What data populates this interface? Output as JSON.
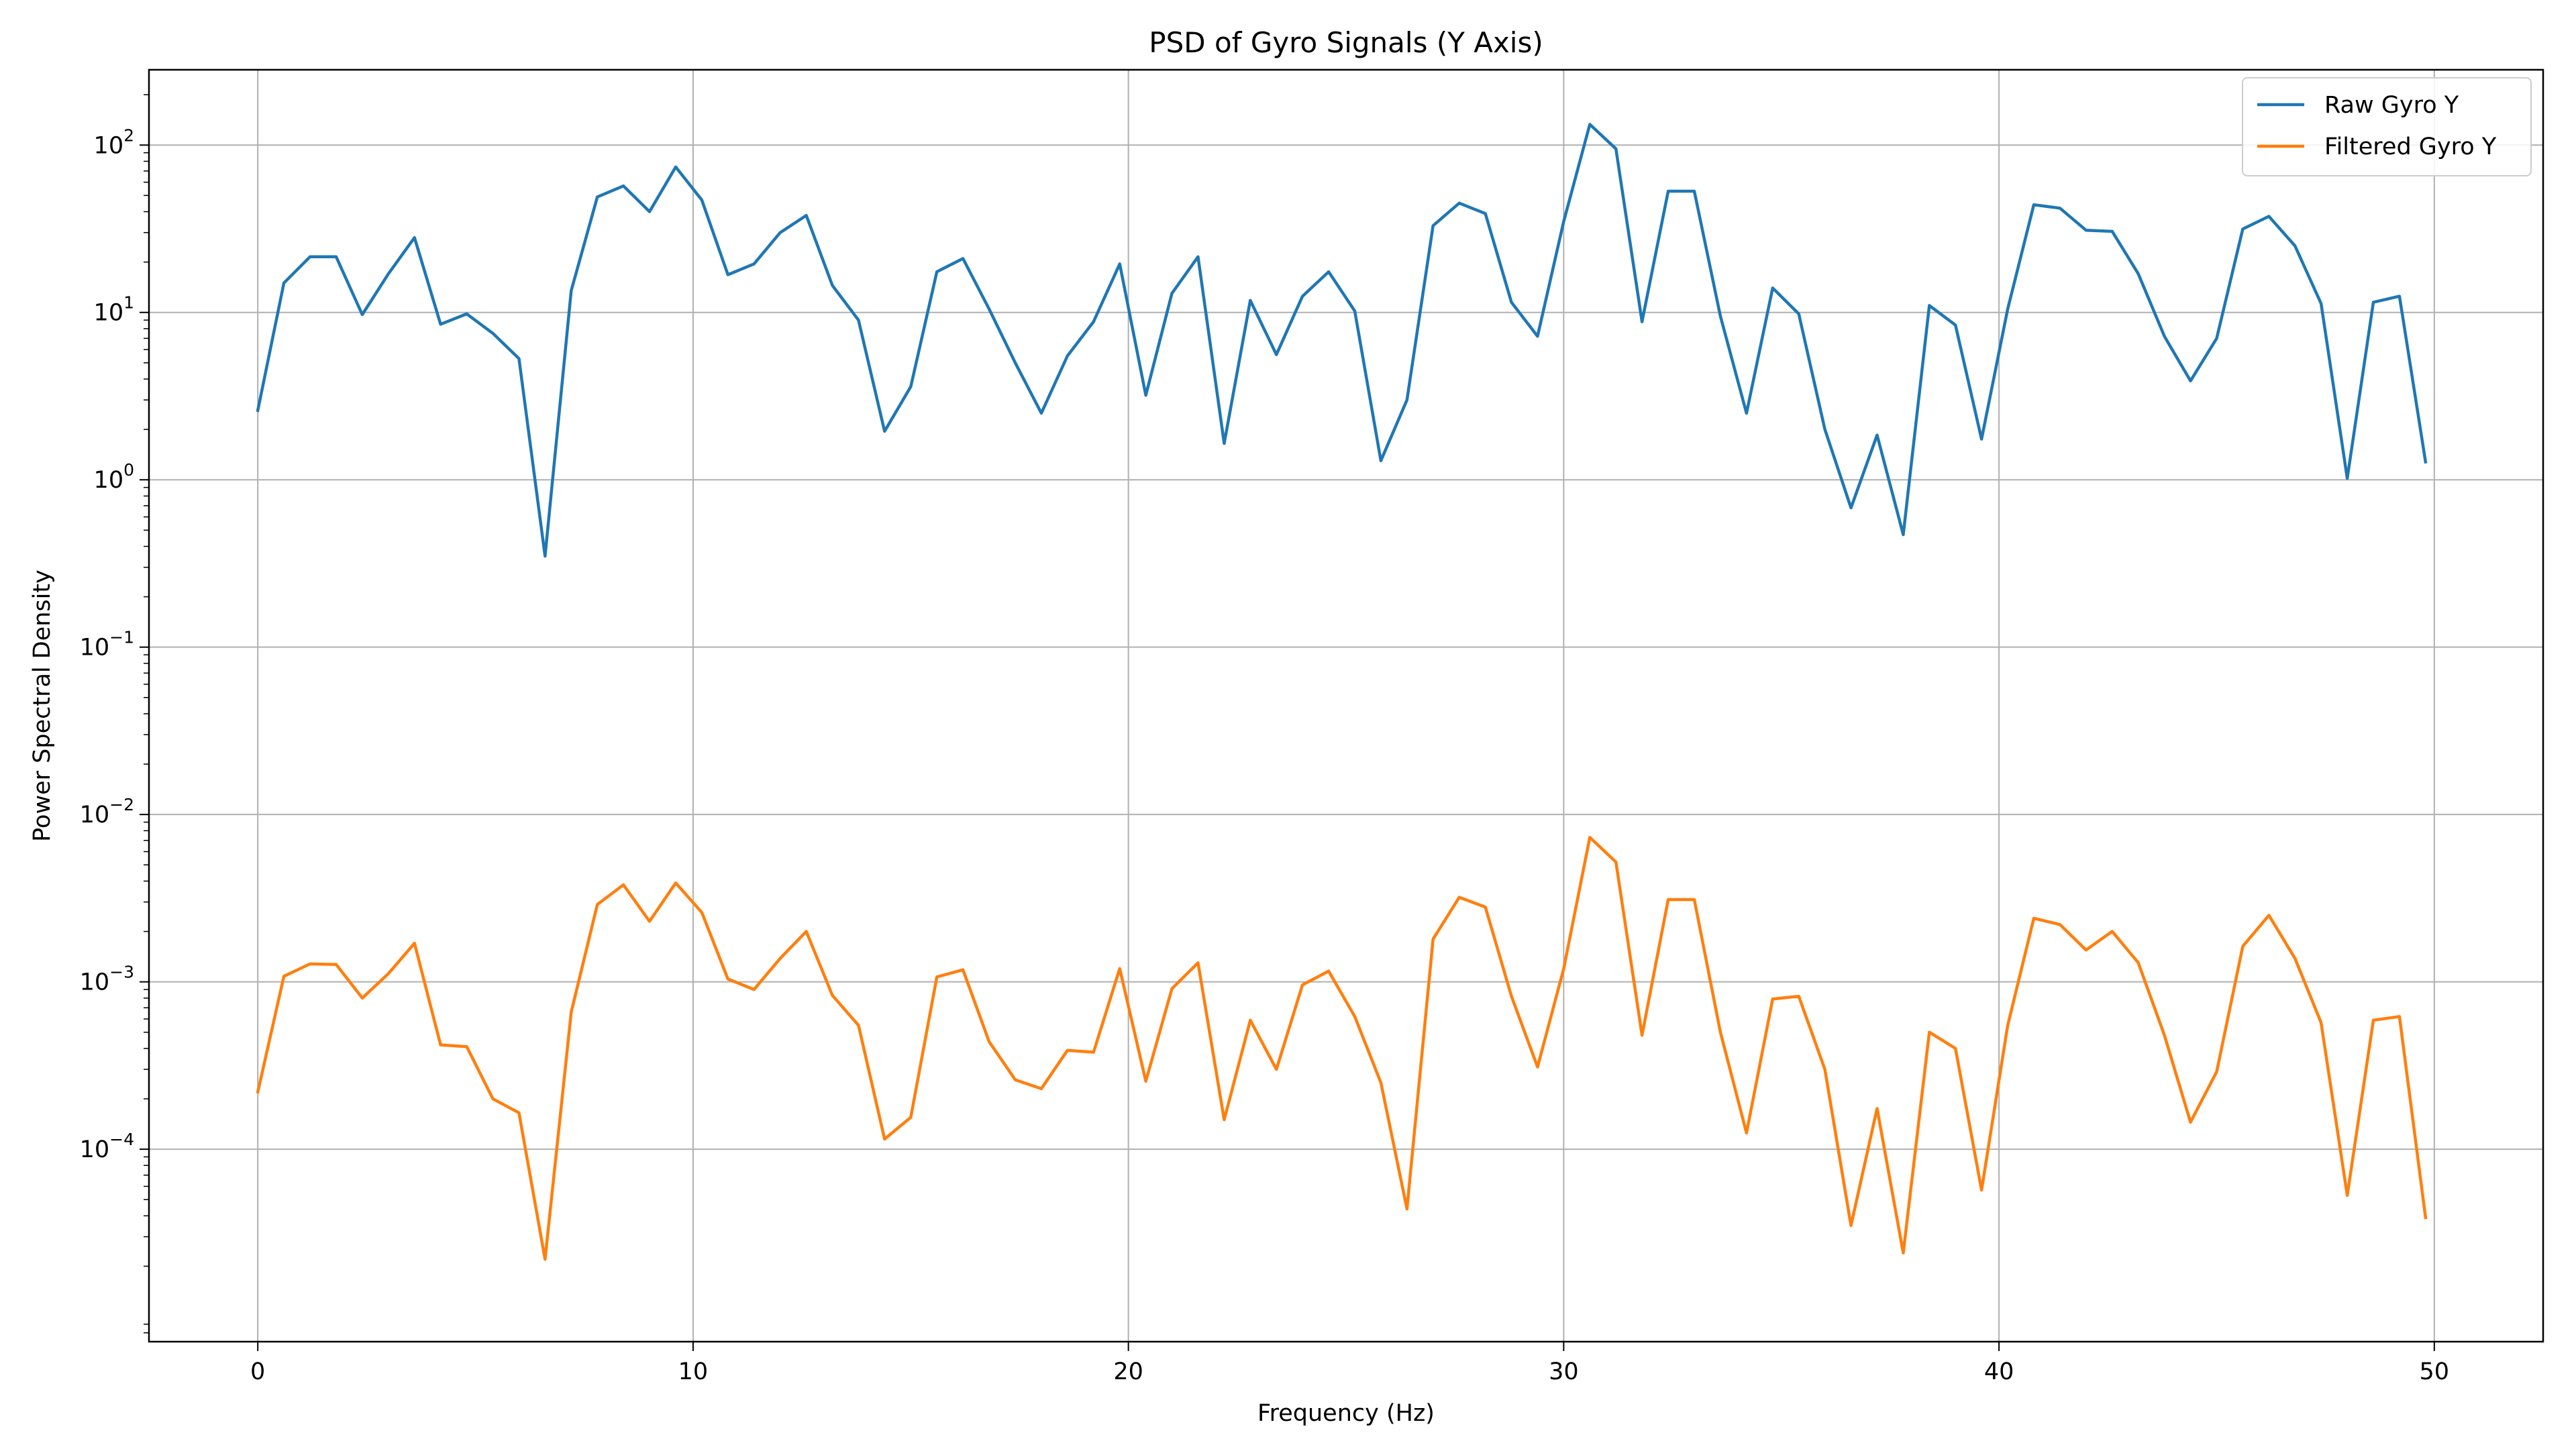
{
  "chart_data": {
    "type": "line",
    "title": "PSD of Gyro Signals (Y Axis)",
    "xlabel": "Frequency (Hz)",
    "ylabel": "Power Spectral Density",
    "xlim": [
      -2.5,
      52.5
    ],
    "ylim_log10": [
      -5.15,
      2.45
    ],
    "y_scale": "log",
    "grid": true,
    "legend_position": "top-right",
    "x_ticks": [
      0,
      10,
      20,
      30,
      40,
      50
    ],
    "y_ticks": [
      {
        "base": "10",
        "exp": "2",
        "value": 100
      },
      {
        "base": "10",
        "exp": "1",
        "value": 10
      },
      {
        "base": "10",
        "exp": "0",
        "value": 1
      },
      {
        "base": "10",
        "exp": "−1",
        "value": 0.1
      },
      {
        "base": "10",
        "exp": "−2",
        "value": 0.01
      },
      {
        "base": "10",
        "exp": "−3",
        "value": 0.001
      },
      {
        "base": "10",
        "exp": "−4",
        "value": 0.0001
      }
    ],
    "x": [
      0,
      0.6,
      1.2,
      1.8,
      2.4,
      3.0,
      3.6,
      4.2,
      4.8,
      5.4,
      6.0,
      6.6,
      7.2,
      7.8,
      8.4,
      9.0,
      9.6,
      10.2,
      10.8,
      11.4,
      12.0,
      12.6,
      13.2,
      13.8,
      14.4,
      15.0,
      15.6,
      16.2,
      16.8,
      17.4,
      18.0,
      18.6,
      19.2,
      19.8,
      20.4,
      21.0,
      21.6,
      22.2,
      22.8,
      23.4,
      24.0,
      24.6,
      25.2,
      25.8,
      26.4,
      27.0,
      27.6,
      28.2,
      28.8,
      29.4,
      30.0,
      30.6,
      31.2,
      31.8,
      32.4,
      33.0,
      33.6,
      34.2,
      34.8,
      35.4,
      36.0,
      36.6,
      37.2,
      37.8,
      38.4,
      39.0,
      39.6,
      40.2,
      40.8,
      41.4,
      42.0,
      42.6,
      43.2,
      43.8,
      44.4,
      45.0,
      45.6,
      46.2,
      46.8,
      47.4,
      48.0,
      48.6,
      49.2,
      49.8
    ],
    "series": [
      {
        "name": "Raw Gyro Y",
        "color": "#1f77b4",
        "values": [
          2.6,
          15,
          21.5,
          21.5,
          9.7,
          17,
          28,
          8.5,
          9.8,
          7.5,
          5.3,
          0.35,
          13.5,
          49,
          57,
          40,
          74,
          47,
          16.8,
          19.5,
          30,
          38,
          14.5,
          9,
          1.95,
          3.6,
          17.5,
          21,
          10.5,
          5,
          2.5,
          5.5,
          8.8,
          19.5,
          3.2,
          13,
          21.5,
          1.65,
          11.8,
          5.6,
          12.5,
          17.5,
          10.2,
          1.3,
          3,
          33,
          45,
          39,
          11.5,
          7.2,
          35,
          133,
          95,
          8.8,
          53,
          53,
          9.5,
          2.5,
          14,
          9.8,
          2,
          0.68,
          1.85,
          0.47,
          11,
          8.4,
          1.75,
          10.5,
          44,
          42,
          31,
          30.5,
          17,
          7.2,
          3.9,
          7,
          31.5,
          37.5,
          25,
          11.3,
          1.02,
          11.5,
          12.5,
          1.28
        ]
      },
      {
        "name": "Filtered Gyro Y",
        "color": "#ff7f0e",
        "values": [
          0.00022,
          0.00108,
          0.00128,
          0.00127,
          0.0008,
          0.00112,
          0.0017,
          0.00042,
          0.00041,
          0.0002,
          0.000165,
          2.2e-05,
          0.00066,
          0.0029,
          0.0038,
          0.0023,
          0.0039,
          0.0026,
          0.00104,
          0.0009,
          0.00138,
          0.002,
          0.00083,
          0.00055,
          0.000115,
          0.000155,
          0.00107,
          0.00118,
          0.00044,
          0.00026,
          0.00023,
          0.00039,
          0.00038,
          0.0012,
          0.000255,
          0.00091,
          0.0013,
          0.00015,
          0.00059,
          0.0003,
          0.00096,
          0.00116,
          0.00062,
          0.00025,
          4.4e-05,
          0.0018,
          0.0032,
          0.0028,
          0.00082,
          0.00031,
          0.0012,
          0.0073,
          0.0052,
          0.00048,
          0.0031,
          0.0031,
          0.0005,
          0.000125,
          0.00079,
          0.00082,
          0.0003,
          3.5e-05,
          0.000175,
          2.4e-05,
          0.0005,
          0.0004,
          5.7e-05,
          0.00055,
          0.0024,
          0.0022,
          0.00155,
          0.002,
          0.0013,
          0.00048,
          0.000145,
          0.00029,
          0.00163,
          0.0025,
          0.00138,
          0.00057,
          5.3e-05,
          0.00059,
          0.00062,
          3.9e-05
        ]
      }
    ]
  }
}
